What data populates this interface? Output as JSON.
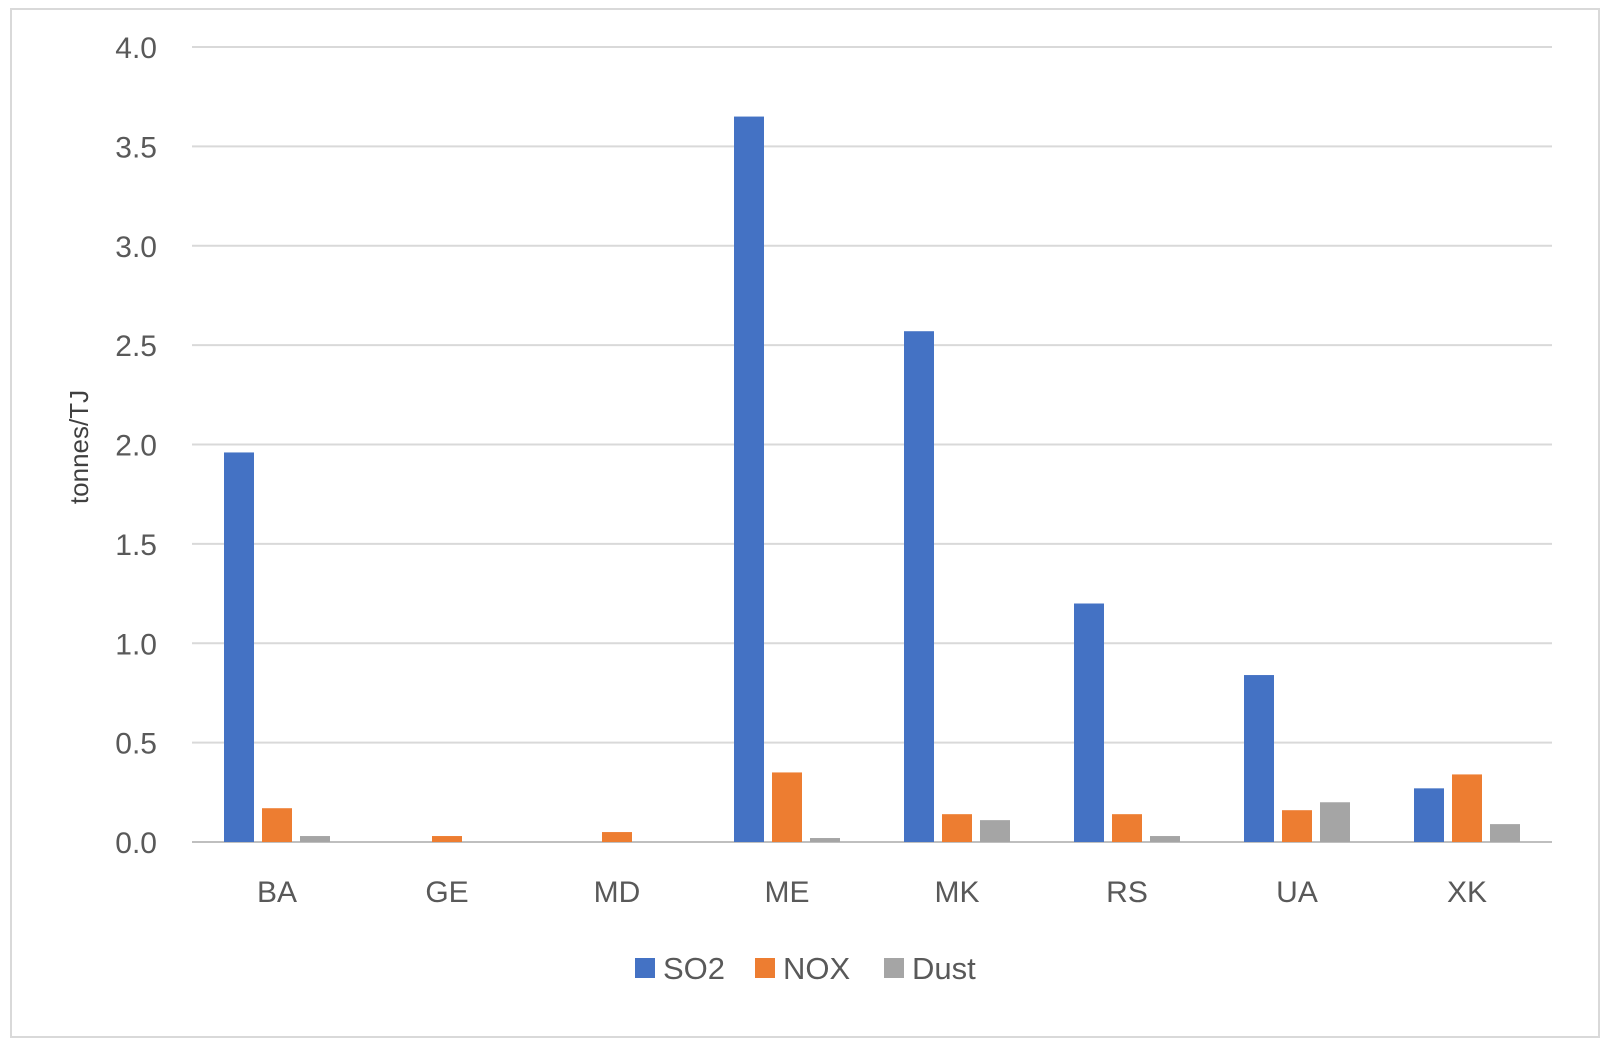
{
  "chart_data": {
    "type": "bar",
    "title": "",
    "xlabel": "",
    "ylabel": "tonnes/TJ",
    "ylim": [
      0,
      4.0
    ],
    "yticks": [
      "0.0",
      "0.5",
      "1.0",
      "1.5",
      "2.0",
      "2.5",
      "3.0",
      "3.5",
      "4.0"
    ],
    "grid": true,
    "legend_position": "bottom",
    "categories": [
      "BA",
      "GE",
      "MD",
      "ME",
      "MK",
      "RS",
      "UA",
      "XK"
    ],
    "series": [
      {
        "name": "SO2",
        "color": "#4472C4",
        "values": [
          1.96,
          0,
          0,
          3.65,
          2.57,
          1.2,
          0.84,
          0.27
        ]
      },
      {
        "name": "NOX",
        "color": "#ED7D31",
        "values": [
          0.17,
          0.03,
          0.05,
          0.35,
          0.14,
          0.14,
          0.16,
          0.34
        ]
      },
      {
        "name": "Dust",
        "color": "#A5A5A5",
        "values": [
          0.03,
          0,
          0,
          0.02,
          0.11,
          0.03,
          0.2,
          0.09
        ]
      }
    ]
  }
}
